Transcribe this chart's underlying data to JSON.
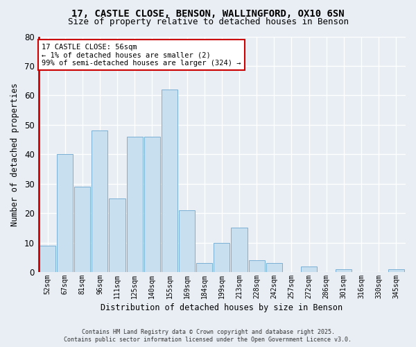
{
  "title1": "17, CASTLE CLOSE, BENSON, WALLINGFORD, OX10 6SN",
  "title2": "Size of property relative to detached houses in Benson",
  "xlabel": "Distribution of detached houses by size in Benson",
  "ylabel": "Number of detached properties",
  "categories": [
    "52sqm",
    "67sqm",
    "81sqm",
    "96sqm",
    "111sqm",
    "125sqm",
    "140sqm",
    "155sqm",
    "169sqm",
    "184sqm",
    "199sqm",
    "213sqm",
    "228sqm",
    "242sqm",
    "257sqm",
    "272sqm",
    "286sqm",
    "301sqm",
    "316sqm",
    "330sqm",
    "345sqm"
  ],
  "values": [
    9,
    40,
    29,
    48,
    25,
    46,
    46,
    62,
    21,
    3,
    10,
    15,
    4,
    3,
    0,
    2,
    0,
    1,
    0,
    0,
    1
  ],
  "bar_color": "#c8dff0",
  "bar_edge_color": "#7aafd4",
  "highlight_color": "#cc0000",
  "annotation_title": "17 CASTLE CLOSE: 56sqm",
  "annotation_line1": "← 1% of detached houses are smaller (2)",
  "annotation_line2": "99% of semi-detached houses are larger (324) →",
  "annotation_box_color": "#cc0000",
  "ylim": [
    0,
    80
  ],
  "yticks": [
    0,
    10,
    20,
    30,
    40,
    50,
    60,
    70,
    80
  ],
  "footer1": "Contains HM Land Registry data © Crown copyright and database right 2025.",
  "footer2": "Contains public sector information licensed under the Open Government Licence v3.0.",
  "background_color": "#e8eef4",
  "plot_bg_color": "#e8eef4",
  "grid_color": "#ffffff",
  "title_fontsize": 10,
  "subtitle_fontsize": 9
}
